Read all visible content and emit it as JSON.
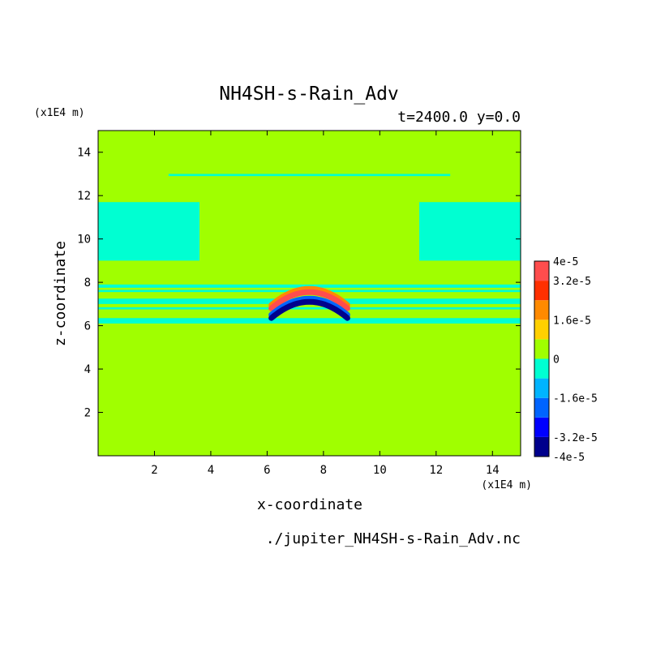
{
  "chart_data": {
    "type": "heatmap",
    "title": "NH4SH-s-Rain_Adv",
    "subtitle": "t=2400.0 y=0.0",
    "xlabel": "x-coordinate",
    "ylabel": "z-coordinate",
    "x_unit": "(x1E4 m)",
    "y_unit": "(x1E4 m)",
    "source_file": "./jupiter_NH4SH-s-Rain_Adv.nc",
    "xlim": [
      0,
      15
    ],
    "ylim": [
      0,
      15
    ],
    "xticks": [
      2,
      4,
      6,
      8,
      10,
      12,
      14
    ],
    "yticks": [
      2,
      4,
      6,
      8,
      10,
      12,
      14
    ],
    "colorbar": {
      "levels": [
        -4e-05,
        -3.2e-05,
        -2.4e-05,
        -1.6e-05,
        -8e-06,
        0,
        8e-06,
        1.6e-05,
        2.4e-05,
        3.2e-05,
        4e-05
      ],
      "colors": [
        "#00008c",
        "#0000ff",
        "#0064ff",
        "#00b4ff",
        "#00ffd2",
        "#a0ff00",
        "#ffd000",
        "#ff8a00",
        "#ff3000",
        "#ff4d4d"
      ],
      "tick_labels": [
        {
          "value": 4e-05,
          "label": "4e-5"
        },
        {
          "value": 3.2e-05,
          "label": "3.2e-5"
        },
        {
          "value": 1.6e-05,
          "label": "1.6e-5"
        },
        {
          "value": 0,
          "label": "0"
        },
        {
          "value": -1.6e-05,
          "label": "-1.6e-5"
        },
        {
          "value": -3.2e-05,
          "label": "-3.2e-5"
        },
        {
          "value": -4e-05,
          "label": "-4e-5"
        }
      ]
    },
    "background_value": 0,
    "bands": [
      {
        "x": [
          0,
          3.6
        ],
        "z": [
          9.0,
          11.7
        ],
        "value": -5e-06
      },
      {
        "x": [
          11.4,
          15
        ],
        "z": [
          9.0,
          11.7
        ],
        "value": -5e-06
      },
      {
        "x": [
          0,
          15
        ],
        "z": [
          7.75,
          7.9
        ],
        "value": -5e-06
      },
      {
        "x": [
          0,
          15
        ],
        "z": [
          7.55,
          7.65
        ],
        "value": -5e-06
      },
      {
        "x": [
          0,
          15
        ],
        "z": [
          7.0,
          7.25
        ],
        "value": -5e-06
      },
      {
        "x": [
          0,
          15
        ],
        "z": [
          6.75,
          6.85
        ],
        "value": -5e-06
      },
      {
        "x": [
          0,
          15
        ],
        "z": [
          6.1,
          6.35
        ],
        "value": -5e-06
      },
      {
        "x": [
          2.5,
          12.5
        ],
        "z": [
          12.9,
          13.0
        ],
        "value": -5e-06
      }
    ],
    "plume": {
      "center_x": 7.5,
      "arcs": [
        {
          "offset": 0.25,
          "value": 2.2e-05
        },
        {
          "offset": 0.1,
          "value": 3.5e-05
        },
        {
          "offset": -0.2,
          "value": -2e-05
        },
        {
          "offset": -0.35,
          "value": -3.6e-05
        }
      ]
    }
  }
}
